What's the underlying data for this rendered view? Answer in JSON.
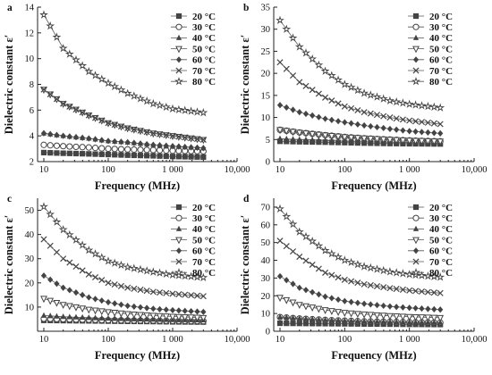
{
  "figure": {
    "series_names": [
      "20 °C",
      "30 °C",
      "40 °C",
      "50 °C",
      "60 °C",
      "70 °C",
      "80 °C"
    ],
    "x_tick_labels": [
      "10",
      "100",
      "1 000",
      "10,000"
    ],
    "xlabel": "Frequency (MHz)",
    "ylabel": "Dielectric constant ε′"
  },
  "chart_data": [
    {
      "panel": "a",
      "type": "line",
      "xlabel": "Frequency (MHz)",
      "ylabel": "Dielectric constant ε′",
      "xscale": "log",
      "xlim": [
        8,
        10000
      ],
      "ylim": [
        2,
        14
      ],
      "yticks": [
        2,
        4,
        6,
        8,
        10,
        12,
        14
      ],
      "xticks": [
        10,
        100,
        1000,
        10000
      ],
      "xticklabels": [
        "10",
        "100",
        "1 000",
        "10,000"
      ],
      "legend": "top-right",
      "x": [
        10,
        20,
        50,
        100,
        200,
        500,
        1000,
        3000
      ],
      "series": [
        {
          "name": "20 °C",
          "marker": "square-filled",
          "values": [
            2.7,
            2.65,
            2.6,
            2.55,
            2.5,
            2.45,
            2.4,
            2.35
          ]
        },
        {
          "name": "30 °C",
          "marker": "circle-open",
          "values": [
            3.3,
            3.2,
            3.1,
            3.0,
            2.95,
            2.9,
            2.85,
            2.8
          ]
        },
        {
          "name": "40 °C",
          "marker": "triangle-filled",
          "values": [
            4.2,
            4.0,
            3.8,
            3.6,
            3.5,
            3.3,
            3.2,
            3.05
          ]
        },
        {
          "name": "50 °C",
          "marker": "triangle-down-open",
          "values": [
            7.6,
            6.5,
            5.6,
            5.0,
            4.6,
            4.2,
            4.0,
            3.7
          ]
        },
        {
          "name": "60 °C",
          "marker": "diamond-filled",
          "values": [
            4.2,
            4.0,
            3.8,
            3.6,
            3.5,
            3.3,
            3.2,
            3.05
          ]
        },
        {
          "name": "70 °C",
          "marker": "x-cross",
          "values": [
            7.6,
            6.5,
            5.6,
            5.0,
            4.6,
            4.2,
            4.0,
            3.7
          ]
        },
        {
          "name": "80 °C",
          "marker": "star",
          "values": [
            13.4,
            10.8,
            9.0,
            8.1,
            7.3,
            6.5,
            6.1,
            5.8
          ]
        }
      ]
    },
    {
      "panel": "b",
      "type": "line",
      "xlabel": "Frequency (MHz)",
      "ylabel": "Dielectric constant ε′",
      "xscale": "log",
      "xlim": [
        8,
        10000
      ],
      "ylim": [
        0,
        35
      ],
      "yticks": [
        0,
        5,
        10,
        15,
        20,
        25,
        30,
        35
      ],
      "xticks": [
        10,
        100,
        1000,
        10000
      ],
      "xticklabels": [
        "10",
        "100",
        "1 000",
        "10,000"
      ],
      "legend": "top-right",
      "x": [
        10,
        20,
        50,
        100,
        200,
        500,
        1000,
        3000
      ],
      "series": [
        {
          "name": "20 °C",
          "marker": "square-filled",
          "values": [
            4.6,
            4.5,
            4.4,
            4.3,
            4.2,
            4.1,
            4.05,
            4.0
          ]
        },
        {
          "name": "30 °C",
          "marker": "circle-open",
          "values": [
            7.2,
            6.6,
            6.0,
            5.6,
            5.3,
            5.0,
            4.8,
            4.6
          ]
        },
        {
          "name": "40 °C",
          "marker": "triangle-filled",
          "values": [
            5.2,
            5.0,
            4.8,
            4.6,
            4.5,
            4.4,
            4.3,
            4.2
          ]
        },
        {
          "name": "50 °C",
          "marker": "triangle-down-open",
          "values": [
            7.2,
            6.6,
            6.0,
            5.6,
            5.3,
            5.0,
            4.8,
            4.6
          ]
        },
        {
          "name": "60 °C",
          "marker": "diamond-filled",
          "values": [
            12.8,
            11.2,
            9.7,
            8.9,
            8.2,
            7.4,
            6.9,
            6.4
          ]
        },
        {
          "name": "70 °C",
          "marker": "x-cross",
          "values": [
            22.5,
            18.0,
            14.5,
            12.5,
            11.2,
            10.0,
            9.3,
            8.5
          ]
        },
        {
          "name": "80 °C",
          "marker": "star",
          "values": [
            32.0,
            26.0,
            20.5,
            17.5,
            15.5,
            13.8,
            13.0,
            12.2
          ]
        }
      ]
    },
    {
      "panel": "c",
      "type": "line",
      "xlabel": "Frequency (MHz)",
      "ylabel": "Dielectric constant ε′",
      "xscale": "log",
      "xlim": [
        8,
        10000
      ],
      "ylim": [
        0,
        55
      ],
      "yticks": [
        10,
        20,
        30,
        40,
        50
      ],
      "xticks": [
        10,
        100,
        1000,
        10000
      ],
      "xticklabels": [
        "10",
        "100",
        "1 000",
        "10,000"
      ],
      "legend": "top-right",
      "x": [
        10,
        20,
        50,
        100,
        200,
        500,
        1000,
        3000
      ],
      "series": [
        {
          "name": "20 °C",
          "marker": "square-filled",
          "values": [
            4.5,
            4.4,
            4.3,
            4.2,
            4.1,
            4.0,
            3.9,
            3.8
          ]
        },
        {
          "name": "30 °C",
          "marker": "circle-open",
          "values": [
            5.2,
            5.0,
            4.8,
            4.6,
            4.5,
            4.4,
            4.3,
            4.2
          ]
        },
        {
          "name": "40 °C",
          "marker": "triangle-filled",
          "values": [
            6.5,
            6.0,
            5.6,
            5.3,
            5.1,
            4.9,
            4.7,
            4.6
          ]
        },
        {
          "name": "50 °C",
          "marker": "triangle-down-open",
          "values": [
            13.5,
            11.0,
            9.0,
            8.0,
            7.2,
            6.5,
            6.1,
            5.6
          ]
        },
        {
          "name": "60 °C",
          "marker": "diamond-filled",
          "values": [
            23.0,
            18.0,
            14.0,
            12.0,
            10.5,
            9.3,
            8.7,
            8.0
          ]
        },
        {
          "name": "70 °C",
          "marker": "x-cross",
          "values": [
            38.0,
            30.0,
            23.5,
            20.0,
            18.0,
            16.3,
            15.5,
            14.5
          ]
        },
        {
          "name": "80 °C",
          "marker": "star",
          "values": [
            51.5,
            42.0,
            33.5,
            29.0,
            26.5,
            24.5,
            23.3,
            22.2
          ]
        }
      ]
    },
    {
      "panel": "d",
      "type": "line",
      "xlabel": "Frequency (MHz)",
      "ylabel": "Dielectric constant ε′",
      "xscale": "log",
      "xlim": [
        8,
        10000
      ],
      "ylim": [
        0,
        75
      ],
      "yticks": [
        0,
        10,
        20,
        30,
        40,
        50,
        60,
        70
      ],
      "xticks": [
        10,
        100,
        1000,
        10000
      ],
      "xticklabels": [
        "10",
        "100",
        "1 000",
        "10,000"
      ],
      "legend": "top-right",
      "x": [
        10,
        20,
        50,
        100,
        200,
        500,
        1000,
        3000
      ],
      "series": [
        {
          "name": "20 °C",
          "marker": "square-filled",
          "values": [
            4.5,
            4.4,
            4.3,
            4.2,
            4.1,
            4.0,
            3.9,
            3.8
          ]
        },
        {
          "name": "30 °C",
          "marker": "circle-open",
          "values": [
            8.0,
            7.2,
            6.4,
            6.0,
            5.6,
            5.3,
            5.1,
            4.9
          ]
        },
        {
          "name": "40 °C",
          "marker": "triangle-filled",
          "values": [
            8.0,
            7.2,
            6.4,
            6.0,
            5.6,
            5.3,
            5.1,
            4.9
          ]
        },
        {
          "name": "50 °C",
          "marker": "triangle-down-open",
          "values": [
            19.0,
            15.0,
            12.0,
            10.5,
            9.6,
            8.7,
            8.2,
            7.6
          ]
        },
        {
          "name": "60 °C",
          "marker": "diamond-filled",
          "values": [
            31.0,
            24.5,
            19.5,
            17.0,
            15.5,
            14.0,
            13.2,
            12.2
          ]
        },
        {
          "name": "70 °C",
          "marker": "x-cross",
          "values": [
            51.0,
            42.0,
            33.0,
            29.0,
            26.5,
            24.3,
            23.0,
            21.5
          ]
        },
        {
          "name": "80 °C",
          "marker": "star",
          "values": [
            69.0,
            56.0,
            45.5,
            40.0,
            36.5,
            33.5,
            32.0,
            30.5
          ]
        }
      ]
    }
  ]
}
